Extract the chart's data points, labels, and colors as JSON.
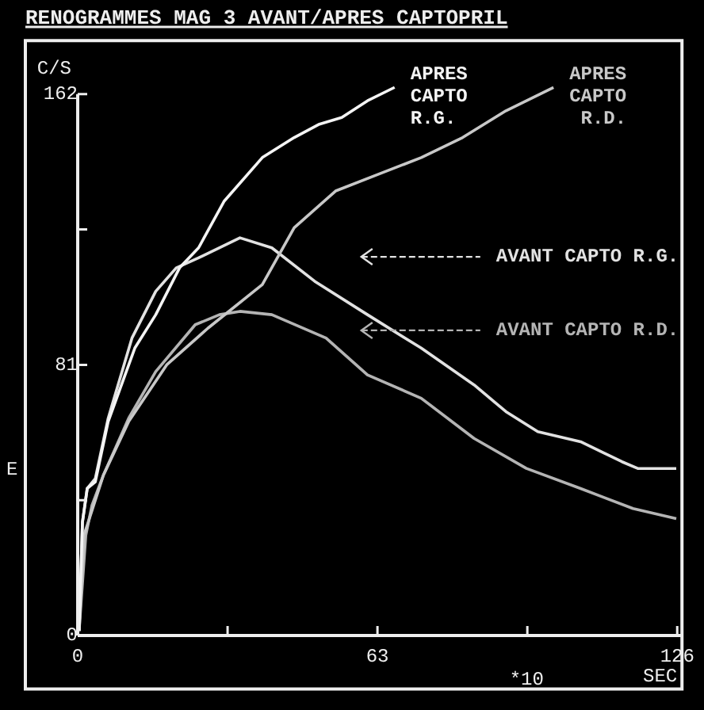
{
  "chart_data": {
    "type": "line",
    "title": "RENOGRAMMES MAG 3 AVANT/APRES CAPTOPRIL",
    "ylabel": "C/S",
    "xlabel": "SEC",
    "annotations": [
      "*10",
      "E"
    ],
    "xlim": [
      -11,
      127
    ],
    "ylim": [
      -16,
      178
    ],
    "xticks": [
      0,
      {
        "value": 31.5,
        "label": null
      },
      63,
      {
        "value": 94.5,
        "label": null
      },
      126
    ],
    "yticks": [
      0,
      {
        "value": 40.5,
        "label": null
      },
      81,
      {
        "value": 121.5,
        "label": null
      },
      162
    ],
    "grid": false,
    "legend": false,
    "marker": "none",
    "line_style": "solid",
    "series": [
      {
        "name": "APRES CAPTO R.G.",
        "color": "#f4f4f4",
        "x": [
          0.3,
          1.0,
          2.0,
          3.7,
          6.4,
          9.7,
          12.0,
          16.4,
          21.4,
          25.4,
          30.8,
          38.8,
          45.5,
          50.8,
          55.5,
          60.9,
          66.6
        ],
        "values": [
          1.4,
          34,
          44,
          46,
          64,
          77,
          86,
          96,
          110,
          116,
          130,
          143,
          149,
          153,
          155,
          160,
          164
        ]
      },
      {
        "name": "APRES CAPTO R.D.",
        "color": "#c8c8c8",
        "x": [
          0.3,
          1.3,
          2.0,
          5.4,
          10.7,
          18.7,
          27.4,
          38.8,
          45.5,
          54.2,
          63.2,
          72.2,
          80.9,
          90.0,
          100.0
        ],
        "values": [
          1.4,
          30,
          33,
          48,
          64,
          81,
          92,
          105,
          122,
          133,
          138,
          143,
          149,
          157,
          164
        ]
      },
      {
        "name": "AVANT CAPTO R.G.",
        "color": "#e2e2e2",
        "x": [
          0.3,
          1.0,
          2.0,
          3.7,
          6.4,
          11.4,
          16.4,
          20.7,
          25.4,
          34.1,
          40.8,
          49.8,
          60.9,
          72.2,
          83.3,
          90.0,
          96.7,
          105.7,
          114.4,
          117.7,
          125.8
        ],
        "values": [
          1.4,
          34,
          44,
          47,
          65,
          89,
          103,
          110,
          113,
          119,
          116,
          106,
          96,
          86,
          75,
          67,
          61,
          58,
          52,
          50,
          50
        ]
      },
      {
        "name": "AVANT CAPTO R.D.",
        "color": "#b4b4b4",
        "x": [
          0.3,
          1.7,
          3.0,
          5.4,
          10.7,
          16.4,
          24.7,
          29.8,
          34.1,
          40.8,
          52.2,
          60.9,
          72.2,
          83.3,
          94.3,
          105.7,
          116.7,
          125.8
        ],
        "values": [
          1.4,
          30,
          39,
          48,
          65,
          79,
          93,
          96,
          97,
          96,
          89,
          78,
          71,
          59,
          50,
          44,
          38,
          35
        ]
      }
    ]
  }
}
